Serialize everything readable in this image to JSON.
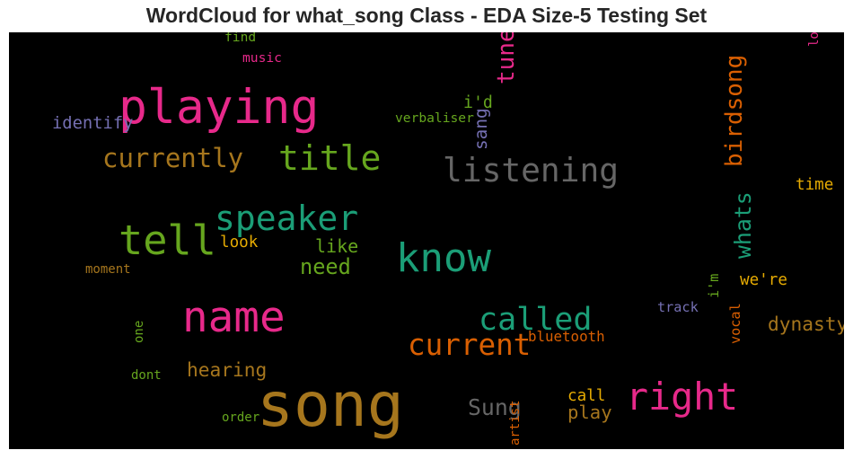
{
  "chart_data": {
    "type": "wordcloud",
    "title": "WordCloud for what_song Class - EDA Size-5 Testing Set",
    "words": [
      {
        "text": "song",
        "weight": 1.0,
        "color": "#a6761d",
        "orientation": "horizontal"
      },
      {
        "text": "playing",
        "weight": 0.75,
        "color": "#e7298a",
        "orientation": "horizontal"
      },
      {
        "text": "name",
        "weight": 0.66,
        "color": "#e7298a",
        "orientation": "horizontal"
      },
      {
        "text": "tell",
        "weight": 0.62,
        "color": "#66a61e",
        "orientation": "horizontal"
      },
      {
        "text": "know",
        "weight": 0.6,
        "color": "#1b9e77",
        "orientation": "horizontal"
      },
      {
        "text": "right",
        "weight": 0.56,
        "color": "#e7298a",
        "orientation": "horizontal"
      },
      {
        "text": "title",
        "weight": 0.5,
        "color": "#66a61e",
        "orientation": "horizontal"
      },
      {
        "text": "speaker",
        "weight": 0.5,
        "color": "#1b9e77",
        "orientation": "horizontal"
      },
      {
        "text": "listening",
        "weight": 0.47,
        "color": "#666666",
        "orientation": "horizontal"
      },
      {
        "text": "called",
        "weight": 0.45,
        "color": "#1b9e77",
        "orientation": "horizontal"
      },
      {
        "text": "current",
        "weight": 0.41,
        "color": "#d95f02",
        "orientation": "horizontal"
      },
      {
        "text": "currently",
        "weight": 0.35,
        "color": "#a6761d",
        "orientation": "horizontal"
      },
      {
        "text": "birdsong",
        "weight": 0.3,
        "color": "#d95f02",
        "orientation": "vertical"
      },
      {
        "text": "tune",
        "weight": 0.3,
        "color": "#e7298a",
        "orientation": "vertical"
      },
      {
        "text": "Sung",
        "weight": 0.28,
        "color": "#666666",
        "orientation": "horizontal"
      },
      {
        "text": "whats",
        "weight": 0.28,
        "color": "#1b9e77",
        "orientation": "vertical"
      },
      {
        "text": "need",
        "weight": 0.26,
        "color": "#66a61e",
        "orientation": "horizontal"
      },
      {
        "text": "hearing",
        "weight": 0.22,
        "color": "#a6761d",
        "orientation": "horizontal"
      },
      {
        "text": "dynasty",
        "weight": 0.22,
        "color": "#a6761d",
        "orientation": "horizontal"
      },
      {
        "text": "play",
        "weight": 0.21,
        "color": "#a6761d",
        "orientation": "horizontal"
      },
      {
        "text": "like",
        "weight": 0.2,
        "color": "#66a61e",
        "orientation": "horizontal"
      },
      {
        "text": "sang",
        "weight": 0.19,
        "color": "#7570b3",
        "orientation": "vertical"
      },
      {
        "text": "identify",
        "weight": 0.18,
        "color": "#7570b3",
        "orientation": "horizontal"
      },
      {
        "text": "i'd",
        "weight": 0.17,
        "color": "#66a61e",
        "orientation": "horizontal"
      },
      {
        "text": "look",
        "weight": 0.16,
        "color": "#e6ab02",
        "orientation": "horizontal"
      },
      {
        "text": "we're",
        "weight": 0.16,
        "color": "#e6ab02",
        "orientation": "horizontal"
      },
      {
        "text": "call",
        "weight": 0.16,
        "color": "#e6ab02",
        "orientation": "horizontal"
      },
      {
        "text": "time",
        "weight": 0.16,
        "color": "#e6ab02",
        "orientation": "horizontal"
      },
      {
        "text": "bluetooth",
        "weight": 0.13,
        "color": "#d95f02",
        "orientation": "horizontal"
      },
      {
        "text": "track",
        "weight": 0.12,
        "color": "#7570b3",
        "orientation": "horizontal"
      },
      {
        "text": "vocal",
        "weight": 0.12,
        "color": "#d95f02",
        "orientation": "vertical"
      },
      {
        "text": "i'm",
        "weight": 0.12,
        "color": "#66a61e",
        "orientation": "vertical"
      },
      {
        "text": "verbaliser",
        "weight": 0.11,
        "color": "#66a61e",
        "orientation": "horizontal"
      },
      {
        "text": "music",
        "weight": 0.11,
        "color": "#e7298a",
        "orientation": "horizontal"
      },
      {
        "text": "find",
        "weight": 0.11,
        "color": "#66a61e",
        "orientation": "horizontal"
      },
      {
        "text": "love",
        "weight": 0.1,
        "color": "#e7298a",
        "orientation": "vertical"
      },
      {
        "text": "moment",
        "weight": 0.1,
        "color": "#a6761d",
        "orientation": "horizontal"
      },
      {
        "text": "one",
        "weight": 0.1,
        "color": "#66a61e",
        "orientation": "vertical"
      },
      {
        "text": "dont",
        "weight": 0.1,
        "color": "#66a61e",
        "orientation": "horizontal"
      },
      {
        "text": "order",
        "weight": 0.1,
        "color": "#66a61e",
        "orientation": "horizontal"
      },
      {
        "text": "artist",
        "weight": 0.1,
        "color": "#d95f02",
        "orientation": "vertical"
      }
    ],
    "background": "#000000",
    "grid": false,
    "legend": "none"
  }
}
